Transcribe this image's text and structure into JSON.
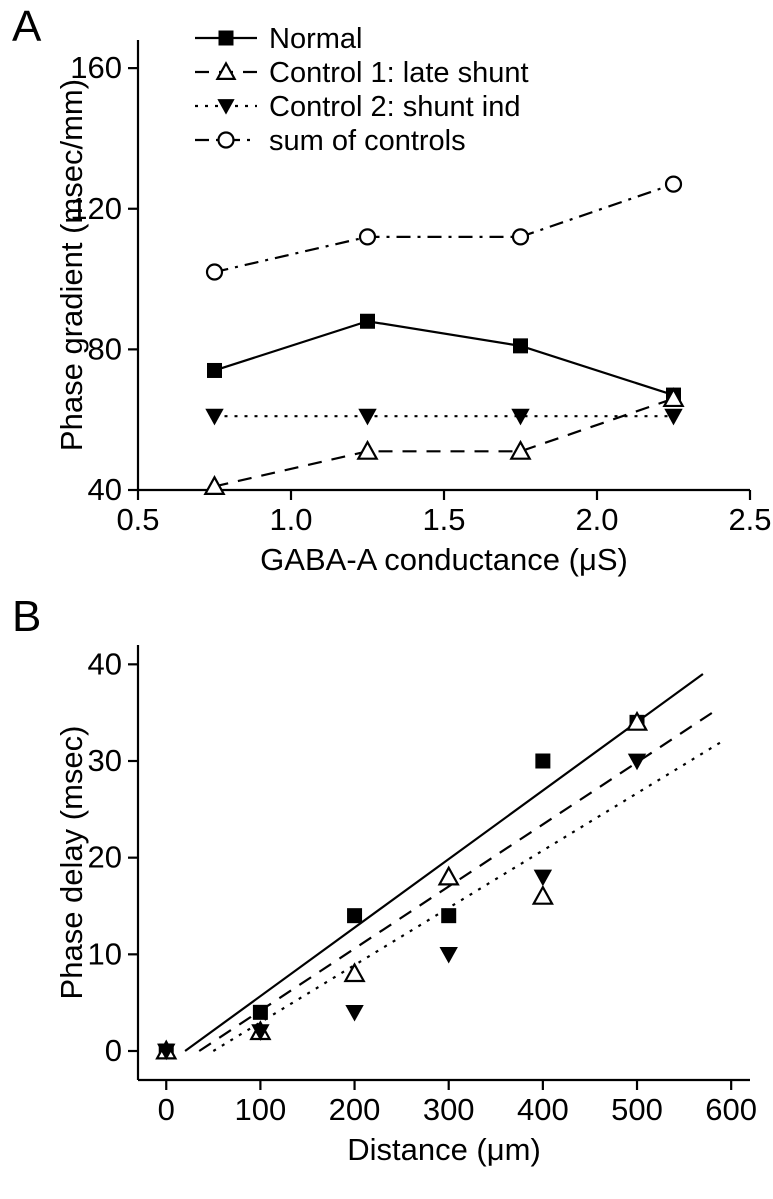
{
  "panel_a": {
    "letter": "A",
    "letter_fontsize": 44,
    "x_label": "GABA-A conductance (μS)",
    "y_label": "Phase gradient (msec/mm)",
    "x_tick_values": [
      0.5,
      1.0,
      1.5,
      2.0,
      2.5
    ],
    "x_tick_labels": [
      "0.5",
      "1.0",
      "1.5",
      "2.0",
      "2.5"
    ],
    "y_tick_values": [
      40,
      80,
      120,
      160
    ],
    "y_tick_labels": [
      "40",
      "80",
      "120",
      "160"
    ],
    "x_range": [
      0.5,
      2.5
    ],
    "y_range": [
      40,
      168
    ],
    "axis_fontsize": 31,
    "tick_fontsize": 31,
    "legend_fontsize": 29,
    "legend_items": [
      {
        "label": "Normal",
        "marker": "filled-square",
        "dash": "solid"
      },
      {
        "label": "Control 1: late shunt",
        "marker": "open-triangle-up",
        "dash": "dash"
      },
      {
        "label": "Control 2: shunt ind",
        "marker": "filled-triangle-down",
        "dash": "dot"
      },
      {
        "label": "sum of controls",
        "marker": "open-circle",
        "dash": "dashdot"
      }
    ],
    "series": {
      "normal": {
        "x": [
          0.75,
          1.25,
          1.75,
          2.25
        ],
        "y": [
          74,
          88,
          81,
          67
        ],
        "marker": "filled-square",
        "dash": "solid",
        "color": "#000000",
        "marker_size": 15,
        "line_width": 2.2
      },
      "control1": {
        "x": [
          0.75,
          1.25,
          1.75,
          2.25
        ],
        "y": [
          41,
          51,
          51,
          66
        ],
        "marker": "open-triangle-up",
        "dash": "dash",
        "color": "#000000",
        "marker_size": 16,
        "line_width": 2.2
      },
      "control2": {
        "x": [
          0.75,
          1.25,
          1.75,
          2.25
        ],
        "y": [
          61,
          61,
          61,
          61
        ],
        "marker": "filled-triangle-down",
        "dash": "dot",
        "color": "#000000",
        "marker_size": 16,
        "line_width": 2.2
      },
      "sum": {
        "x": [
          0.75,
          1.25,
          1.75,
          2.25
        ],
        "y": [
          102,
          112,
          112,
          127
        ],
        "marker": "open-circle",
        "dash": "dashdot",
        "color": "#000000",
        "marker_size": 15,
        "line_width": 2.2
      }
    }
  },
  "panel_b": {
    "letter": "B",
    "letter_fontsize": 44,
    "x_label": "Distance (μm)",
    "y_label": "Phase delay (msec)",
    "x_tick_values": [
      0,
      100,
      200,
      300,
      400,
      500,
      600
    ],
    "x_tick_labels": [
      "0",
      "100",
      "200",
      "300",
      "400",
      "500",
      "600"
    ],
    "y_tick_values": [
      0,
      10,
      20,
      30,
      40
    ],
    "y_tick_labels": [
      "0",
      "10",
      "20",
      "30",
      "40"
    ],
    "x_range": [
      -30,
      620
    ],
    "y_range": [
      -3,
      42
    ],
    "axis_fontsize": 31,
    "tick_fontsize": 31,
    "series": {
      "normal": {
        "x": [
          0,
          100,
          200,
          300,
          400,
          500
        ],
        "y": [
          0,
          4,
          14,
          14,
          30,
          34
        ],
        "marker": "filled-square",
        "color": "#000000",
        "marker_size": 15
      },
      "control1": {
        "x": [
          0,
          100,
          200,
          300,
          400,
          500
        ],
        "y": [
          0,
          2,
          8,
          18,
          16,
          34
        ],
        "marker": "open-triangle-up",
        "color": "#000000",
        "marker_size": 16
      },
      "control2": {
        "x": [
          0,
          100,
          200,
          300,
          400,
          500
        ],
        "y": [
          0,
          2,
          4,
          10,
          18,
          30
        ],
        "marker": "filled-triangle-down",
        "color": "#000000",
        "marker_size": 16
      }
    },
    "fit_lines": {
      "solid": {
        "x1": 20,
        "y1": 0,
        "x2": 570,
        "y2": 39,
        "dash": "solid",
        "line_width": 2.2
      },
      "dashed": {
        "x1": 35,
        "y1": 0,
        "x2": 580,
        "y2": 35,
        "dash": "dash",
        "line_width": 2.2
      },
      "dotted": {
        "x1": 50,
        "y1": 0,
        "x2": 590,
        "y2": 32,
        "dash": "dot",
        "line_width": 2.2
      }
    }
  },
  "colors": {
    "axis": "#000000",
    "background": "#ffffff"
  },
  "dash_patterns": {
    "solid": "",
    "dash": "14 10",
    "dot": "3 7",
    "dashdot": "14 7 3 7"
  },
  "marker_stroke_width": 2.2
}
